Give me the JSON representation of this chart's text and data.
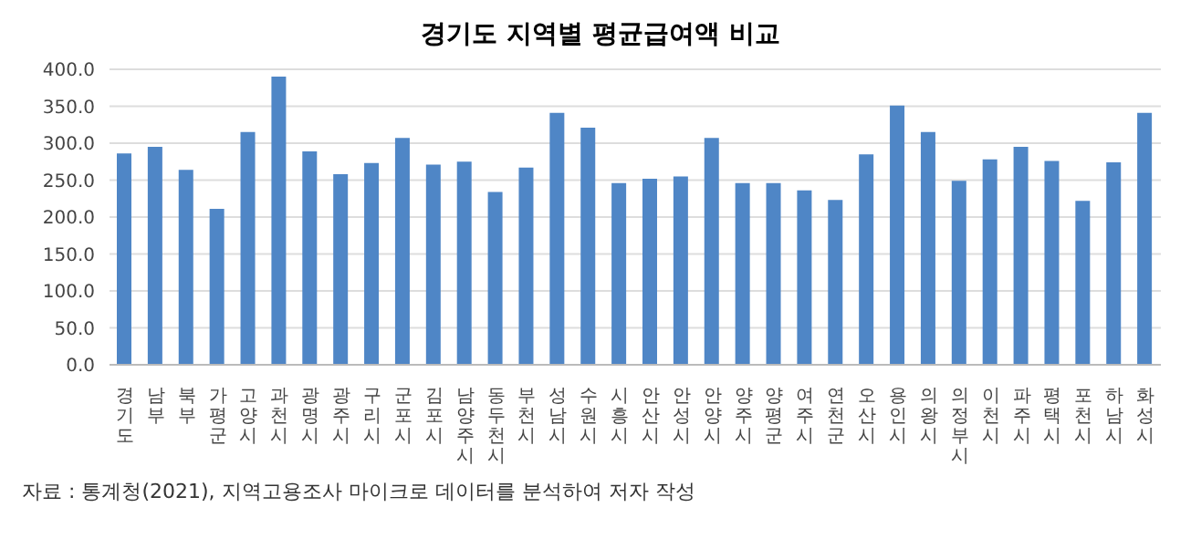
{
  "chart_data": {
    "type": "bar",
    "title": "경기도 지역별 평균급여액 비교",
    "categories": [
      "경기도",
      "남부",
      "북부",
      "가평군",
      "고양시",
      "과천시",
      "광명시",
      "광주시",
      "구리시",
      "군포시",
      "김포시",
      "남양주시",
      "동두천시",
      "부천시",
      "성남시",
      "수원시",
      "시흥시",
      "안산시",
      "안성시",
      "안양시",
      "양주시",
      "양평군",
      "여주시",
      "연천군",
      "오산시",
      "용인시",
      "의왕시",
      "의정부시",
      "이천시",
      "파주시",
      "평택시",
      "포천시",
      "하남시",
      "화성시"
    ],
    "values": [
      286,
      295,
      264,
      211,
      315,
      390,
      289,
      258,
      273,
      307,
      271,
      275,
      234,
      267,
      341,
      321,
      246,
      252,
      255,
      307,
      246,
      246,
      236,
      223,
      285,
      351,
      315,
      249,
      278,
      295,
      276,
      222,
      274,
      341
    ],
    "color": "#4f86c6",
    "ylim": [
      0,
      400
    ],
    "yticks": [
      {
        "value": 0,
        "label": "0.0"
      },
      {
        "value": 50,
        "label": "50.0"
      },
      {
        "value": 100,
        "label": "100.0"
      },
      {
        "value": 150,
        "label": "150.0"
      },
      {
        "value": 200,
        "label": "200.0"
      },
      {
        "value": 250,
        "label": "250.0"
      },
      {
        "value": 300,
        "label": "300.0"
      },
      {
        "value": 350,
        "label": "350.0"
      },
      {
        "value": 400,
        "label": "400.0"
      }
    ],
    "grid": "y",
    "annotations": [
      "자료 : 통계청(2021), 지역고용조사 마이크로 데이터를 분석하여 저자 작성"
    ]
  }
}
